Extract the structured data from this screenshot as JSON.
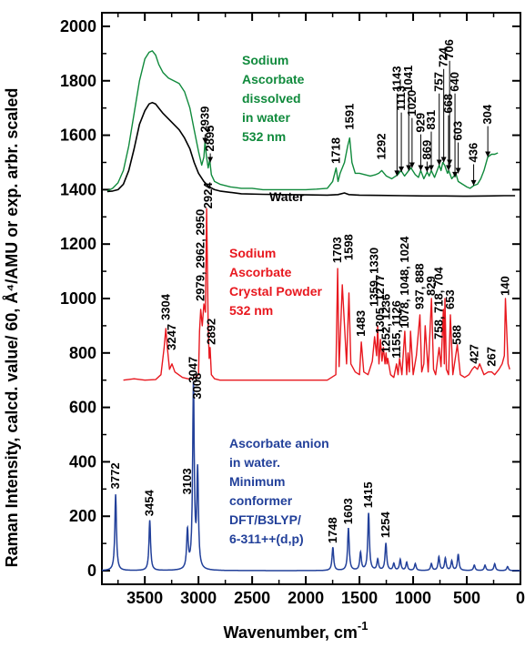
{
  "chart_data": {
    "type": "line",
    "xlabel": "Wavenumber, cm",
    "xlabel_sup": "-1",
    "ylabel": "Raman Intensity, calcd. value/ 60, Å⁴/AMU or exp. arbr. scaled",
    "xlim": [
      3900,
      0
    ],
    "ylim": [
      -50,
      2050
    ],
    "x_ticks": [
      3500,
      3000,
      2500,
      2000,
      1500,
      1000,
      500,
      0
    ],
    "x_tick_labels": [
      "3500",
      "3000",
      "2500",
      "2000",
      "1500",
      "1000",
      "500",
      "0"
    ],
    "y_ticks": [
      0,
      200,
      400,
      600,
      800,
      1000,
      1200,
      1400,
      1600,
      1800,
      2000
    ],
    "y_tick_labels": [
      "0",
      "200",
      "400",
      "600",
      "800",
      "1000",
      "1200",
      "1400",
      "1600",
      "1800",
      "2000"
    ],
    "grid": false,
    "series": [
      {
        "name": "Sodium Ascorbate dissolved in water 532 nm",
        "color": "#108a3c",
        "x": [
          3850,
          3800,
          3750,
          3700,
          3650,
          3600,
          3550,
          3500,
          3460,
          3430,
          3400,
          3370,
          3330,
          3280,
          3230,
          3180,
          3130,
          3080,
          3040,
          3000,
          2970,
          2950,
          2939,
          2925,
          2910,
          2895,
          2880,
          2850,
          2800,
          2700,
          2600,
          2500,
          2400,
          2300,
          2200,
          2100,
          2000,
          1900,
          1800,
          1750,
          1718,
          1700,
          1680,
          1640,
          1610,
          1591,
          1570,
          1540,
          1500,
          1450,
          1400,
          1350,
          1320,
          1292,
          1250,
          1200,
          1143,
          1113,
          1080,
          1041,
          1020,
          980,
          950,
          929,
          900,
          869,
          850,
          831,
          800,
          757,
          740,
          724,
          706,
          680,
          668,
          640,
          620,
          603,
          580,
          540,
          500,
          470,
          436,
          400,
          370,
          340,
          304,
          270,
          240,
          210
        ],
        "y": [
          1395,
          1405,
          1425,
          1470,
          1560,
          1680,
          1800,
          1880,
          1905,
          1910,
          1895,
          1860,
          1830,
          1810,
          1800,
          1790,
          1760,
          1700,
          1620,
          1540,
          1490,
          1520,
          1575,
          1520,
          1480,
          1510,
          1455,
          1430,
          1420,
          1410,
          1405,
          1405,
          1400,
          1400,
          1400,
          1400,
          1400,
          1402,
          1405,
          1430,
          1480,
          1430,
          1460,
          1500,
          1560,
          1590,
          1500,
          1460,
          1460,
          1455,
          1450,
          1455,
          1460,
          1470,
          1450,
          1440,
          1455,
          1470,
          1450,
          1470,
          1480,
          1455,
          1445,
          1470,
          1440,
          1465,
          1450,
          1470,
          1445,
          1490,
          1470,
          1500,
          1490,
          1460,
          1470,
          1440,
          1450,
          1460,
          1430,
          1420,
          1410,
          1405,
          1415,
          1420,
          1440,
          1470,
          1520,
          1530,
          1530,
          1535
        ]
      },
      {
        "name": "Water",
        "color": "#000000",
        "x": [
          3850,
          3800,
          3750,
          3700,
          3650,
          3600,
          3550,
          3500,
          3460,
          3430,
          3400,
          3370,
          3330,
          3280,
          3230,
          3180,
          3130,
          3080,
          3040,
          3000,
          2950,
          2900,
          2850,
          2800,
          2700,
          2600,
          2400,
          2200,
          2000,
          1800,
          1700,
          1640,
          1600,
          1500,
          1300,
          1100,
          900,
          700,
          500,
          300,
          150,
          50
        ],
        "y": [
          1393,
          1395,
          1400,
          1420,
          1470,
          1550,
          1640,
          1690,
          1715,
          1720,
          1715,
          1700,
          1680,
          1660,
          1640,
          1620,
          1590,
          1550,
          1500,
          1460,
          1430,
          1410,
          1400,
          1395,
          1390,
          1385,
          1383,
          1382,
          1381,
          1380,
          1382,
          1388,
          1382,
          1380,
          1379,
          1378,
          1377,
          1377,
          1376,
          1377,
          1378,
          1378
        ]
      },
      {
        "name": "Sodium Ascorbate Crystal Powder 532 nm",
        "color": "#e8181f",
        "x": [
          3700,
          3600,
          3500,
          3400,
          3350,
          3320,
          3304,
          3290,
          3270,
          3247,
          3220,
          3150,
          3100,
          3050,
          3000,
          2990,
          2979,
          2965,
          2950,
          2935,
          2924,
          2910,
          2900,
          2892,
          2880,
          2850,
          2800,
          2600,
          2400,
          2200,
          2000,
          1800,
          1720,
          1703,
          1690,
          1660,
          1620,
          1598,
          1580,
          1540,
          1500,
          1483,
          1460,
          1420,
          1380,
          1359,
          1340,
          1330,
          1318,
          1305,
          1290,
          1277,
          1262,
          1252,
          1245,
          1236,
          1210,
          1180,
          1155,
          1140,
          1126,
          1105,
          1078,
          1060,
          1048,
          1035,
          1024,
          1000,
          970,
          937,
          920,
          900,
          888,
          860,
          829,
          810,
          790,
          758,
          740,
          718,
          710,
          704,
          690,
          670,
          653,
          630,
          588,
          560,
          520,
          480,
          450,
          427,
          400,
          380,
          360,
          340,
          300,
          267,
          240,
          200,
          170,
          150,
          140,
          130,
          115,
          100
        ],
        "y": [
          700,
          705,
          700,
          702,
          720,
          820,
          890,
          820,
          740,
          760,
          730,
          710,
          705,
          705,
          720,
          880,
          960,
          900,
          980,
          950,
          1330,
          900,
          780,
          820,
          720,
          705,
          700,
          700,
          700,
          700,
          700,
          700,
          720,
          1110,
          750,
          1050,
          760,
          1020,
          760,
          730,
          720,
          840,
          730,
          720,
          770,
          860,
          790,
          900,
          760,
          850,
          770,
          820,
          760,
          800,
          760,
          780,
          720,
          710,
          760,
          720,
          780,
          720,
          880,
          720,
          800,
          730,
          880,
          720,
          790,
          940,
          730,
          760,
          900,
          730,
          1000,
          740,
          720,
          820,
          750,
          960,
          760,
          1000,
          740,
          720,
          940,
          720,
          830,
          720,
          710,
          720,
          740,
          750,
          740,
          760,
          740,
          720,
          730,
          730,
          720,
          740,
          760,
          790,
          1000,
          900,
          760,
          740
        ]
      },
      {
        "name": "Ascorbate anion in water. Minimum conformer DFT/B3LYP/ 6-311++(d,p)",
        "color": "#22409a",
        "peaks": [
          {
            "x": 3772,
            "y": 280
          },
          {
            "x": 3454,
            "y": 185
          },
          {
            "x": 3103,
            "y": 140
          },
          {
            "x": 3047,
            "y": 680
          },
          {
            "x": 3008,
            "y": 355
          },
          {
            "x": 1748,
            "y": 85
          },
          {
            "x": 1603,
            "y": 155
          },
          {
            "x": 1490,
            "y": 65
          },
          {
            "x": 1415,
            "y": 210
          },
          {
            "x": 1330,
            "y": 40
          },
          {
            "x": 1254,
            "y": 100
          },
          {
            "x": 1180,
            "y": 25
          },
          {
            "x": 1120,
            "y": 40
          },
          {
            "x": 1060,
            "y": 30
          },
          {
            "x": 980,
            "y": 25
          },
          {
            "x": 830,
            "y": 25
          },
          {
            "x": 760,
            "y": 50
          },
          {
            "x": 700,
            "y": 45
          },
          {
            "x": 640,
            "y": 35
          },
          {
            "x": 580,
            "y": 60
          },
          {
            "x": 430,
            "y": 20
          },
          {
            "x": 330,
            "y": 20
          },
          {
            "x": 240,
            "y": 25
          },
          {
            "x": 120,
            "y": 15
          }
        ]
      }
    ],
    "legend_labels": {
      "dissolved": [
        "Sodium",
        "Ascorbate",
        "dissolved",
        "in water",
        "532 nm"
      ],
      "water": "Water",
      "crystal": [
        "Sodium",
        "Ascorbate",
        "Crystal Powder",
        "532 nm"
      ],
      "calc": [
        "Ascorbate anion",
        "in water.",
        "Minimum",
        "conformer",
        "DFT/B3LYP/",
        "6-311++(d,p)"
      ]
    },
    "annotations": [
      {
        "text": "2939",
        "x": 2939,
        "y": 1610,
        "color": "#000000",
        "arrow_to": 1570
      },
      {
        "text": "2895",
        "x": 2890,
        "y": 1540,
        "color": "#000000",
        "arrow_to": 1500
      },
      {
        "text": "1718",
        "x": 1718,
        "y": 1495,
        "color": "#000000"
      },
      {
        "text": "1591",
        "x": 1591,
        "y": 1620,
        "color": "#000000"
      },
      {
        "text": "1292",
        "x": 1292,
        "y": 1510,
        "color": "#000000"
      },
      {
        "text": "1143",
        "x": 1150,
        "y": 1760,
        "color": "#000000",
        "arrow_to": 1450
      },
      {
        "text": "1113",
        "x": 1110,
        "y": 1690,
        "color": "#000000",
        "arrow_to": 1465
      },
      {
        "text": "1041",
        "x": 1041,
        "y": 1760,
        "color": "#000000",
        "arrow_to": 1470
      },
      {
        "text": "1020",
        "x": 1010,
        "y": 1670,
        "color": "#000000",
        "arrow_to": 1480
      },
      {
        "text": "929",
        "x": 929,
        "y": 1610,
        "color": "#000000",
        "arrow_to": 1470
      },
      {
        "text": "869",
        "x": 870,
        "y": 1510,
        "color": "#000000",
        "arrow_to": 1465
      },
      {
        "text": "831",
        "x": 831,
        "y": 1620,
        "color": "#000000",
        "arrow_to": 1470
      },
      {
        "text": "757",
        "x": 757,
        "y": 1760,
        "color": "#000000",
        "arrow_to": 1490
      },
      {
        "text": "724",
        "x": 715,
        "y": 1850,
        "color": "#000000",
        "arrow_to": 1500
      },
      {
        "text": "706",
        "x": 660,
        "y": 1880,
        "color": "#000000",
        "arrow_to": 1490
      },
      {
        "text": "668",
        "x": 670,
        "y": 1680,
        "color": "#000000",
        "arrow_to": 1470
      },
      {
        "text": "640",
        "x": 610,
        "y": 1760,
        "color": "#000000",
        "arrow_to": 1445
      },
      {
        "text": "603",
        "x": 580,
        "y": 1580,
        "color": "#000000",
        "arrow_to": 1460
      },
      {
        "text": "436",
        "x": 436,
        "y": 1500,
        "color": "#000000",
        "arrow_to": 1415
      },
      {
        "text": "304",
        "x": 304,
        "y": 1640,
        "color": "#000000",
        "arrow_to": 1520
      },
      {
        "text": "3304",
        "x": 3304,
        "y": 920,
        "color": "#000000"
      },
      {
        "text": "3247",
        "x": 3247,
        "y": 810,
        "color": "#000000"
      },
      {
        "text": "2979, 2962, 2950",
        "x": 2979,
        "y": 990,
        "color": "#000000"
      },
      {
        "text": "2924",
        "x": 2910,
        "y": 1330,
        "color": "#000000"
      },
      {
        "text": "2892",
        "x": 2880,
        "y": 830,
        "color": "#000000"
      },
      {
        "text": "1703",
        "x": 1703,
        "y": 1130,
        "color": "#000000"
      },
      {
        "text": "1598",
        "x": 1598,
        "y": 1140,
        "color": "#000000"
      },
      {
        "text": "1483",
        "x": 1483,
        "y": 860,
        "color": "#000000"
      },
      {
        "text": "1359, 1330",
        "x": 1359,
        "y": 970,
        "color": "#000000"
      },
      {
        "text": "1305, 1277",
        "x": 1305,
        "y": 870,
        "color": "#000000"
      },
      {
        "text": "1252, 1236",
        "x": 1252,
        "y": 800,
        "color": "#000000"
      },
      {
        "text": "1155, 1126",
        "x": 1155,
        "y": 780,
        "color": "#000000"
      },
      {
        "text": "1078, 1048, 1024",
        "x": 1078,
        "y": 890,
        "color": "#000000"
      },
      {
        "text": "829",
        "x": 829,
        "y": 1010,
        "color": "#000000"
      },
      {
        "text": "937, 888",
        "x": 937,
        "y": 960,
        "color": "#000000"
      },
      {
        "text": "758, 718, 704",
        "x": 758,
        "y": 850,
        "color": "#000000"
      },
      {
        "text": "653",
        "x": 653,
        "y": 960,
        "color": "#000000"
      },
      {
        "text": "588",
        "x": 588,
        "y": 830,
        "color": "#000000"
      },
      {
        "text": "427",
        "x": 427,
        "y": 760,
        "color": "#000000"
      },
      {
        "text": "267",
        "x": 267,
        "y": 750,
        "color": "#000000"
      },
      {
        "text": "140",
        "x": 140,
        "y": 1010,
        "color": "#000000"
      },
      {
        "text": "3772",
        "x": 3772,
        "y": 300,
        "color": "#000000"
      },
      {
        "text": "3454",
        "x": 3454,
        "y": 200,
        "color": "#000000"
      },
      {
        "text": "3103",
        "x": 3103,
        "y": 280,
        "color": "#000000"
      },
      {
        "text": "3047",
        "x": 3047,
        "y": 690,
        "color": "#000000"
      },
      {
        "text": "3008",
        "x": 3008,
        "y": 630,
        "color": "#000000"
      },
      {
        "text": "1748",
        "x": 1748,
        "y": 100,
        "color": "#000000"
      },
      {
        "text": "1603",
        "x": 1603,
        "y": 170,
        "color": "#000000"
      },
      {
        "text": "1415",
        "x": 1415,
        "y": 230,
        "color": "#000000"
      },
      {
        "text": "1254",
        "x": 1254,
        "y": 120,
        "color": "#000000"
      }
    ]
  }
}
